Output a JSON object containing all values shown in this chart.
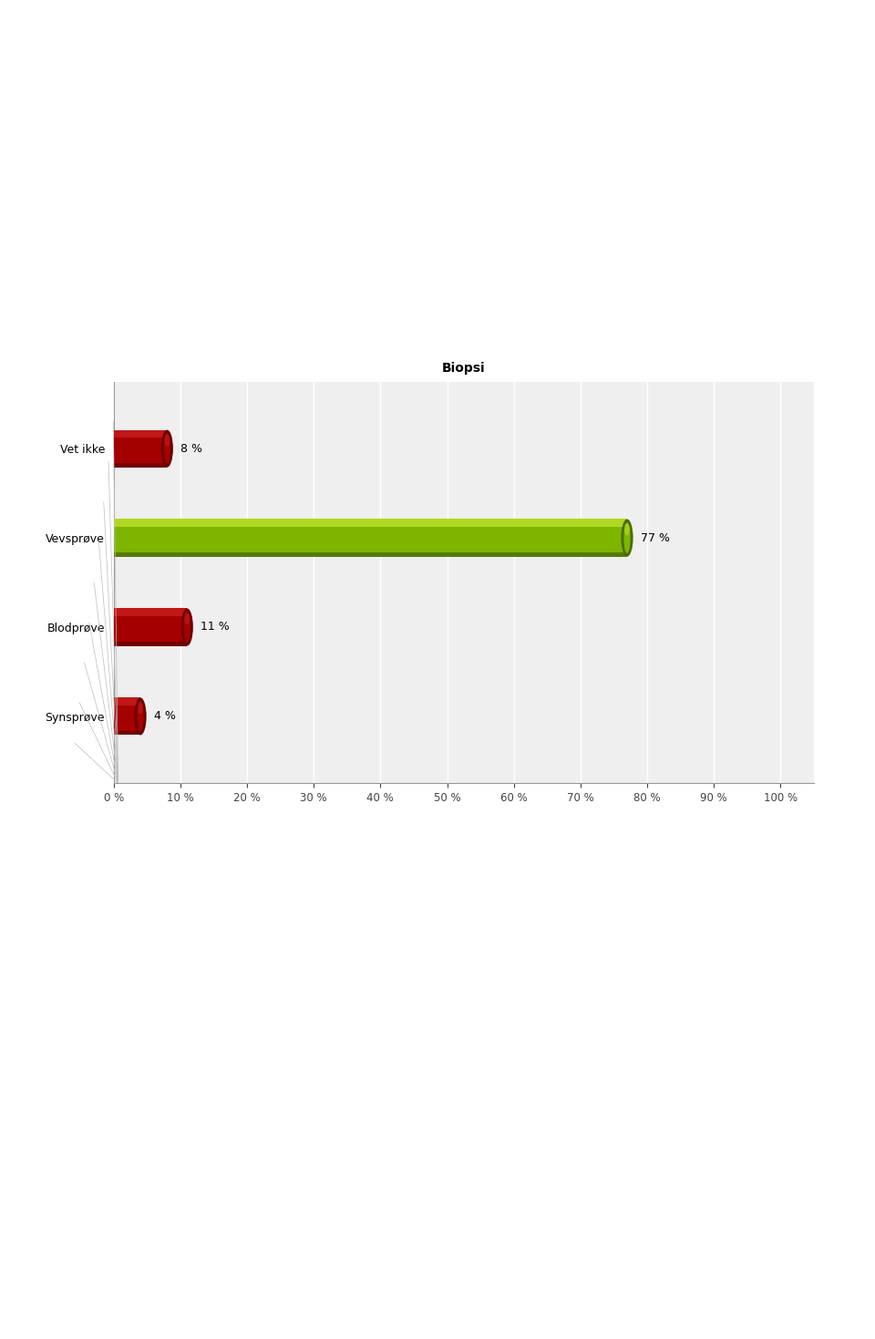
{
  "title": "Biopsi",
  "categories": [
    "Synsprøve",
    "Blodprøve",
    "Vevsprøve",
    "Vet ikke"
  ],
  "values": [
    4,
    11,
    77,
    8
  ],
  "bar_colors": [
    "#a50000",
    "#a50000",
    "#7db500",
    "#a50000"
  ],
  "bar_colors_light": [
    "#cc2222",
    "#cc2222",
    "#c8e830",
    "#cc2222"
  ],
  "bar_colors_dark": [
    "#6a0000",
    "#6a0000",
    "#4a6d00",
    "#6a0000"
  ],
  "xlim": [
    0,
    100
  ],
  "xticks": [
    0,
    10,
    20,
    30,
    40,
    50,
    60,
    70,
    80,
    90,
    100
  ],
  "xtick_labels": [
    "0 %",
    "10 %",
    "20 %",
    "30 %",
    "40 %",
    "50 %",
    "60 %",
    "70 %",
    "80 %",
    "90 %",
    "100 %"
  ],
  "plot_bg": "#efefef",
  "wall_bg": "#d8d8d8",
  "title_fontsize": 10,
  "label_fontsize": 9,
  "tick_fontsize": 8.5,
  "value_fontsize": 9
}
